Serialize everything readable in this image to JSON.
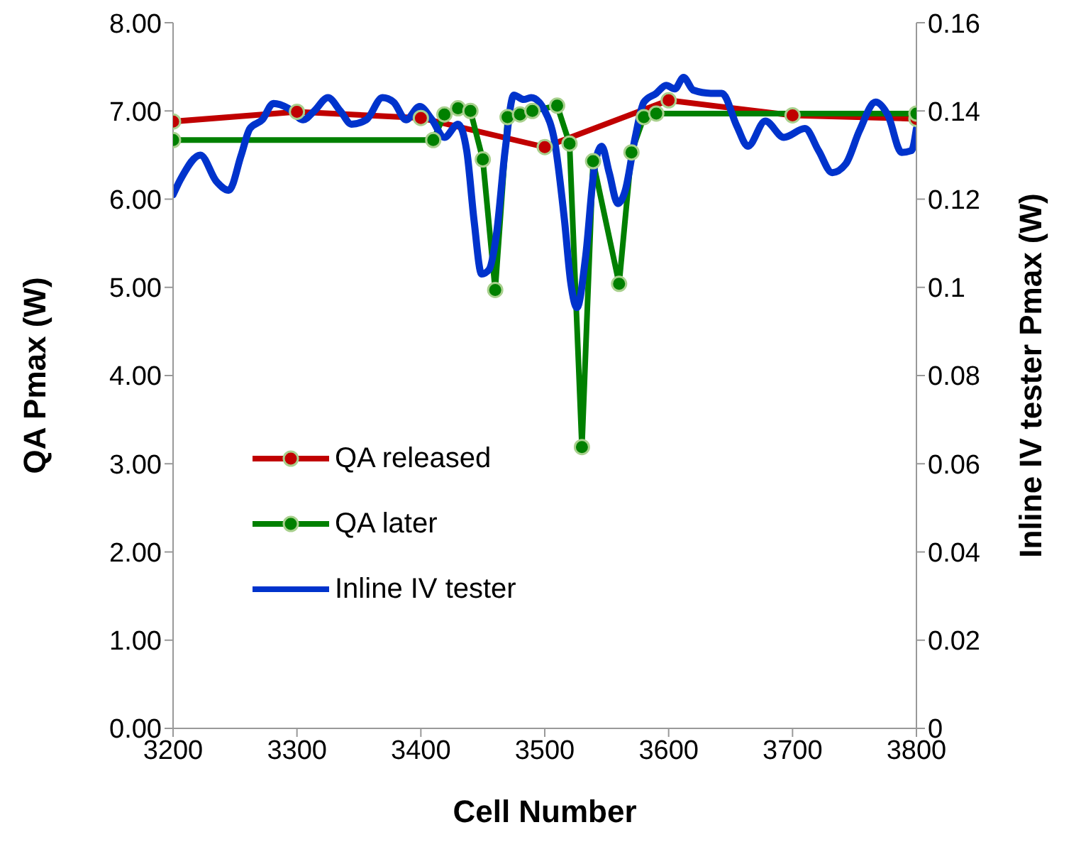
{
  "chart_data": {
    "type": "line",
    "xlabel": "Cell Number",
    "ylabel": "QA Pmax (W)",
    "y2label": "Inline IV tester Pmax (W)",
    "xlim": [
      3200,
      3800
    ],
    "xticks": [
      3200,
      3300,
      3400,
      3500,
      3600,
      3700,
      3800
    ],
    "ylim": [
      0,
      8
    ],
    "yticks": [
      {
        "value": 0,
        "label": "0.00"
      },
      {
        "value": 1,
        "label": "1.00"
      },
      {
        "value": 2,
        "label": "2.00"
      },
      {
        "value": 3,
        "label": "3.00"
      },
      {
        "value": 4,
        "label": "4.00"
      },
      {
        "value": 5,
        "label": "5.00"
      },
      {
        "value": 6,
        "label": "6.00"
      },
      {
        "value": 7,
        "label": "7.00"
      },
      {
        "value": 8,
        "label": "8.00"
      }
    ],
    "y2lim": [
      0,
      0.16
    ],
    "y2ticks": [
      0,
      0.02,
      0.04,
      0.06,
      0.08,
      0.1,
      0.12,
      0.14,
      0.16
    ],
    "grid": false,
    "legend": "bottom left",
    "series": [
      {
        "name": "QA released",
        "color": "#c00000",
        "marker": "circle",
        "x": [
          3200,
          3300,
          3400,
          3500,
          3600,
          3700,
          3800
        ],
        "values": [
          6.88,
          6.99,
          6.92,
          6.59,
          7.12,
          6.95,
          6.91
        ]
      },
      {
        "name": "QA later",
        "color": "#008000",
        "marker": "circle",
        "x": [
          3200,
          3410,
          3419,
          3430,
          3440,
          3450,
          3460,
          3470,
          3480,
          3490,
          3510,
          3520,
          3530,
          3539,
          3560,
          3570,
          3580,
          3590,
          3800
        ],
        "values": [
          6.67,
          6.67,
          6.96,
          7.03,
          7.0,
          6.45,
          4.97,
          6.93,
          6.96,
          7.0,
          7.06,
          6.63,
          3.19,
          6.43,
          5.04,
          6.53,
          6.93,
          6.97,
          6.97
        ]
      },
      {
        "name": "Inline IV tester",
        "color": "#0033cc",
        "marker": "none",
        "axis": "y2",
        "x": [
          3200,
          3207,
          3222,
          3235,
          3245,
          3255,
          3262,
          3272,
          3281,
          3293,
          3305,
          3314,
          3325,
          3335,
          3344,
          3356,
          3369,
          3378,
          3388,
          3399,
          3409,
          3419,
          3430,
          3437,
          3443,
          3449,
          3455,
          3461,
          3468,
          3475,
          3483,
          3489,
          3500,
          3508,
          3516,
          3521,
          3526,
          3533,
          3540,
          3546,
          3552,
          3559,
          3565,
          3573,
          3580,
          3590,
          3598,
          3605,
          3612,
          3620,
          3634,
          3643,
          3655,
          3664,
          3678,
          3693,
          3710,
          3721,
          3732,
          3743,
          3754,
          3767,
          3777,
          3788,
          3796,
          3800
        ],
        "values": [
          0.121,
          0.125,
          0.13,
          0.124,
          0.122,
          0.13,
          0.136,
          0.138,
          0.1417,
          0.1406,
          0.138,
          0.14,
          0.143,
          0.14,
          0.137,
          0.138,
          0.143,
          0.142,
          0.138,
          0.141,
          0.138,
          0.134,
          0.137,
          0.131,
          0.115,
          0.103,
          0.104,
          0.112,
          0.131,
          0.1436,
          0.1426,
          0.143,
          0.14,
          0.133,
          0.115,
          0.101,
          0.0954,
          0.107,
          0.127,
          0.132,
          0.126,
          0.119,
          0.122,
          0.134,
          0.142,
          0.144,
          0.1458,
          0.145,
          0.1476,
          0.1447,
          0.144,
          0.144,
          0.1366,
          0.132,
          0.1377,
          0.134,
          0.136,
          0.131,
          0.126,
          0.128,
          0.1355,
          0.142,
          0.139,
          0.1306,
          0.131,
          0.136
        ]
      }
    ]
  }
}
